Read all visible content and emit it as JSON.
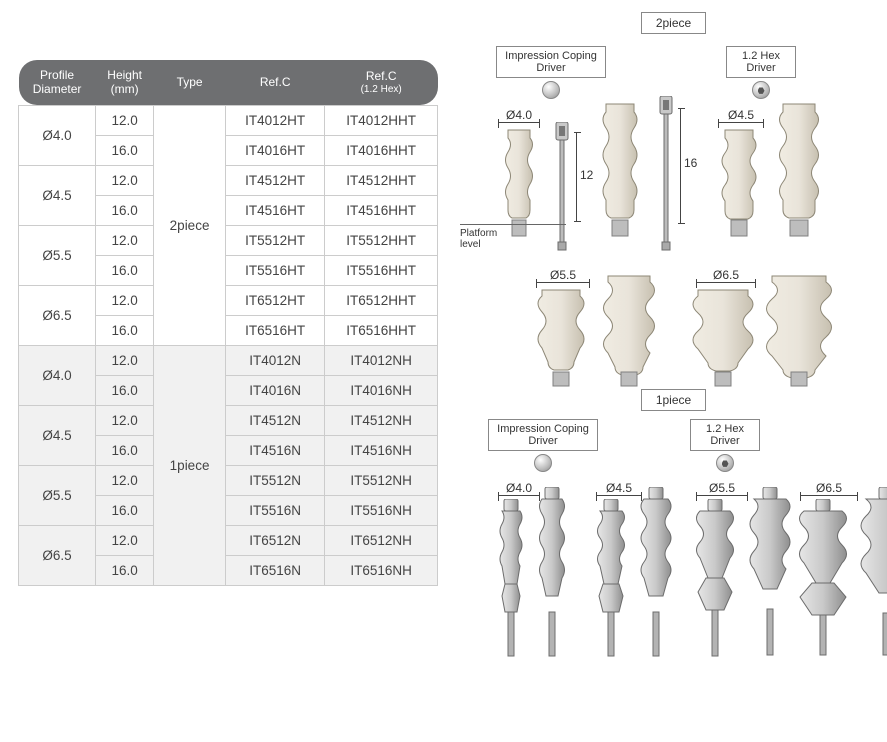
{
  "table": {
    "headers": {
      "c1": "Profile",
      "c1b": "Diameter",
      "c2": "Height",
      "c2b": "(mm)",
      "c3": "Type",
      "c4": "Ref.C",
      "c5": "Ref.C",
      "c5b": "(1.2 Hex)"
    },
    "type_2p": "2piece",
    "type_1p": "1piece",
    "rows_2p": [
      {
        "dia": "Ø4.0",
        "h": "12.0",
        "r1": "IT4012HT",
        "r2": "IT4012HHT"
      },
      {
        "dia": "",
        "h": "16.0",
        "r1": "IT4016HT",
        "r2": "IT4016HHT"
      },
      {
        "dia": "Ø4.5",
        "h": "12.0",
        "r1": "IT4512HT",
        "r2": "IT4512HHT"
      },
      {
        "dia": "",
        "h": "16.0",
        "r1": "IT4516HT",
        "r2": "IT4516HHT"
      },
      {
        "dia": "Ø5.5",
        "h": "12.0",
        "r1": "IT5512HT",
        "r2": "IT5512HHT"
      },
      {
        "dia": "",
        "h": "16.0",
        "r1": "IT5516HT",
        "r2": "IT5516HHT"
      },
      {
        "dia": "Ø6.5",
        "h": "12.0",
        "r1": "IT6512HT",
        "r2": "IT6512HHT"
      },
      {
        "dia": "",
        "h": "16.0",
        "r1": "IT6516HT",
        "r2": "IT6516HHT"
      }
    ],
    "rows_1p": [
      {
        "dia": "Ø4.0",
        "h": "12.0",
        "r1": "IT4012N",
        "r2": "IT4012NH"
      },
      {
        "dia": "",
        "h": "16.0",
        "r1": "IT4016N",
        "r2": "IT4016NH"
      },
      {
        "dia": "Ø4.5",
        "h": "12.0",
        "r1": "IT4512N",
        "r2": "IT4512NH"
      },
      {
        "dia": "",
        "h": "16.0",
        "r1": "IT4516N",
        "r2": "IT4516NH"
      },
      {
        "dia": "Ø5.5",
        "h": "12.0",
        "r1": "IT5512N",
        "r2": "IT5512NH"
      },
      {
        "dia": "",
        "h": "16.0",
        "r1": "IT5516N",
        "r2": "IT5516NH"
      },
      {
        "dia": "Ø6.5",
        "h": "12.0",
        "r1": "IT6512N",
        "r2": "IT6512NH"
      },
      {
        "dia": "",
        "h": "16.0",
        "r1": "IT6516N",
        "r2": "IT6516NH"
      }
    ]
  },
  "diagram": {
    "tag_2p": "2piece",
    "tag_1p": "1piece",
    "impression_driver": "Impression Coping\nDriver",
    "hex_driver": "1.2 Hex\nDriver",
    "platform": "Platform\nlevel",
    "dia40": "Ø4.0",
    "dia45": "Ø4.5",
    "dia55": "Ø5.5",
    "dia65": "Ø6.5",
    "h12": "12",
    "h16": "16",
    "colors": {
      "abut_light": "#e9e4da",
      "abut_dark": "#cfc9bd",
      "abut_stroke": "#8d8776",
      "metal_light": "#d8d8d8",
      "metal_dark": "#9b9b9b",
      "metal_stroke": "#6c6c6c"
    }
  }
}
